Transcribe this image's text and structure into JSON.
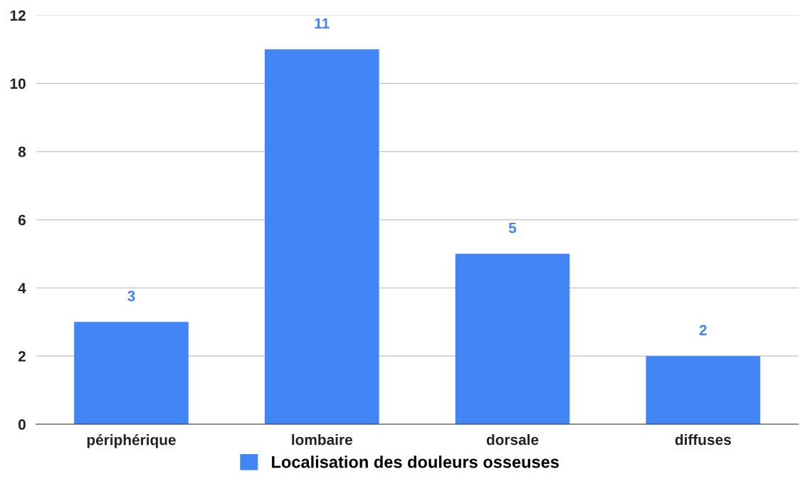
{
  "chart_data": {
    "type": "bar",
    "categories": [
      "périphérique",
      "lombaire",
      "dorsale",
      "diffuses"
    ],
    "series": [
      {
        "name": "Localisation des douleurs osseuses",
        "color": "#4285f4",
        "values": [
          3,
          11,
          5,
          2
        ]
      }
    ],
    "ylim": [
      0,
      12
    ],
    "yticks": [
      0,
      2,
      4,
      6,
      8,
      10,
      12
    ],
    "grid": "y",
    "legend": "bottom",
    "data_labels": true
  }
}
